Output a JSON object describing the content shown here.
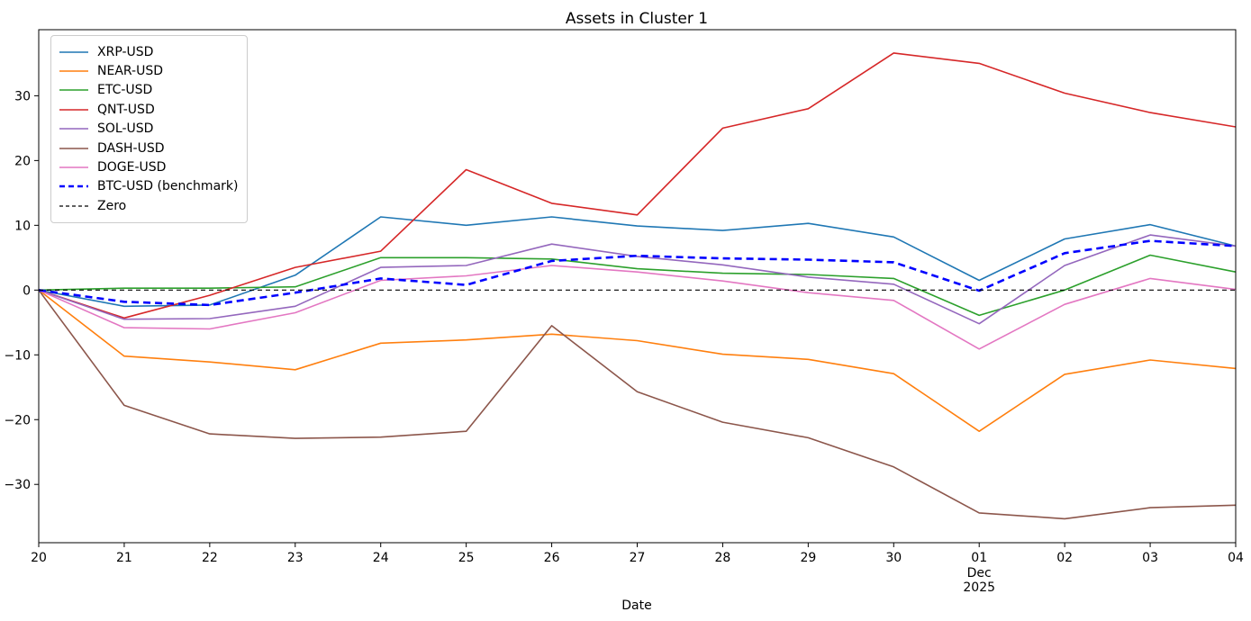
{
  "title": "Assets in Cluster 1",
  "chart_data": {
    "type": "line",
    "title": "Assets in Cluster 1",
    "xlabel": "Date",
    "ylabel": "",
    "x_tick_labels": [
      "20",
      "21",
      "22",
      "23",
      "24",
      "25",
      "26",
      "27",
      "28",
      "29",
      "30",
      "01",
      "02",
      "03",
      "04"
    ],
    "x_sub_label": {
      "index": 11,
      "lines": [
        "Dec",
        "2025"
      ]
    },
    "y_ticks": [
      -30,
      -20,
      -10,
      0,
      10,
      20,
      30
    ],
    "ylim": [
      -39.0,
      40.2
    ],
    "grid": false,
    "legend_position": "upper-left",
    "axis_color": "#000000",
    "series": [
      {
        "name": "XRP-USD",
        "color": "#1f77b4",
        "style": "solid",
        "width": 1.6,
        "values": [
          0,
          -2.5,
          -2.3,
          2.3,
          11.3,
          10.0,
          11.3,
          9.9,
          9.2,
          10.3,
          8.2,
          1.5,
          7.9,
          10.1,
          6.8
        ]
      },
      {
        "name": "NEAR-USD",
        "color": "#ff7f0e",
        "style": "solid",
        "width": 1.6,
        "values": [
          0,
          -10.2,
          -11.1,
          -12.3,
          -8.2,
          -7.7,
          -6.8,
          -7.8,
          -9.9,
          -10.7,
          -12.9,
          -21.8,
          -13.0,
          -10.8,
          -12.1
        ]
      },
      {
        "name": "ETC-USD",
        "color": "#2ca02c",
        "style": "solid",
        "width": 1.6,
        "values": [
          0,
          0.3,
          0.3,
          0.5,
          5.0,
          5.0,
          4.8,
          3.3,
          2.6,
          2.4,
          1.8,
          -3.9,
          0.0,
          5.4,
          2.8
        ]
      },
      {
        "name": "QNT-USD",
        "color": "#d62728",
        "style": "solid",
        "width": 1.6,
        "values": [
          0,
          -4.3,
          -0.8,
          3.5,
          6.0,
          18.6,
          13.4,
          11.6,
          25.0,
          28.0,
          36.6,
          35.0,
          30.4,
          27.4,
          25.2
        ]
      },
      {
        "name": "SOL-USD",
        "color": "#9467bd",
        "style": "solid",
        "width": 1.6,
        "values": [
          0,
          -4.5,
          -4.4,
          -2.5,
          3.5,
          3.8,
          7.1,
          5.2,
          3.9,
          2.0,
          0.9,
          -5.2,
          3.8,
          8.5,
          6.8
        ]
      },
      {
        "name": "DASH-USD",
        "color": "#8c564b",
        "style": "solid",
        "width": 1.6,
        "values": [
          0,
          -17.8,
          -22.2,
          -22.9,
          -22.7,
          -21.8,
          -5.5,
          -15.7,
          -20.4,
          -22.8,
          -27.3,
          -34.4,
          -35.3,
          -33.6,
          -33.2
        ]
      },
      {
        "name": "DOGE-USD",
        "color": "#e377c2",
        "style": "solid",
        "width": 1.6,
        "values": [
          0,
          -5.8,
          -6.0,
          -3.5,
          1.5,
          2.2,
          3.8,
          2.8,
          1.4,
          -0.4,
          -1.6,
          -9.1,
          -2.2,
          1.8,
          0.1
        ]
      },
      {
        "name": "BTC-USD (benchmark)",
        "color": "#0000ff",
        "style": "dashed",
        "width": 2.6,
        "values": [
          0,
          -1.8,
          -2.3,
          -0.4,
          1.8,
          0.8,
          4.5,
          5.3,
          4.9,
          4.7,
          4.3,
          -0.1,
          5.7,
          7.6,
          6.8
        ]
      },
      {
        "name": "Zero",
        "color": "#000000",
        "style": "dashed",
        "width": 1.2,
        "values": [
          0,
          0,
          0,
          0,
          0,
          0,
          0,
          0,
          0,
          0,
          0,
          0,
          0,
          0,
          0
        ]
      }
    ]
  }
}
